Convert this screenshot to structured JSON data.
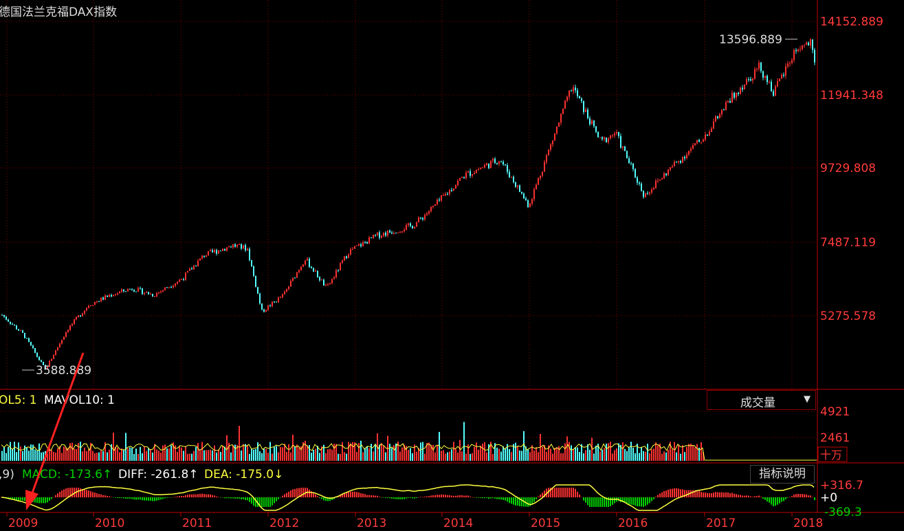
{
  "title": "德国法兰克福DAX指数",
  "price_axis": {
    "ticks": [
      "14152.889",
      "11941.348",
      "9729.808",
      "7487.119",
      "5275.578"
    ]
  },
  "annotations": {
    "high": "13596.889",
    "low": "3588.889"
  },
  "volume_panel": {
    "legend_mavol5": "OL5: 1",
    "legend_mavol10": "MAVOL10: 1",
    "dropdown_label": "成交量",
    "dropdown_arrow": "▼",
    "ticks": [
      "4921",
      "2461"
    ],
    "unit": "十万"
  },
  "macd_panel": {
    "legend_prefix": ",9)",
    "legend_macd": "MACD: -173.6↑",
    "legend_diff": "DIFF: -261.8↑",
    "legend_dea": "DEA: -175.0↓",
    "button": "指标说明",
    "ticks": [
      "+316.7",
      "+0",
      "-369.3"
    ]
  },
  "time_axis": {
    "years": [
      "2009",
      "2010",
      "2011",
      "2012",
      "2013",
      "2014",
      "2015",
      "2016",
      "2017",
      "2018"
    ]
  },
  "colors": {
    "up": "#ff3232",
    "down": "#54ffff",
    "axis": "#c00000",
    "grid": "#8b0000",
    "yellow": "#ffff40",
    "green": "#00d000",
    "arrow": "#ff2020"
  },
  "chart_data": {
    "type": "candlestick",
    "title": "德国法兰克福DAX指数",
    "x_range": [
      "2008-09",
      "2018-02"
    ],
    "ylim": [
      3000,
      14400
    ],
    "high": 13596.889,
    "low": 3588.889,
    "anchors": [
      {
        "x": "2008-09",
        "y": 5300
      },
      {
        "x": "2008-12",
        "y": 4700
      },
      {
        "x": "2009-03",
        "y": 3650
      },
      {
        "x": "2009-06",
        "y": 4850
      },
      {
        "x": "2009-09",
        "y": 5600
      },
      {
        "x": "2009-12",
        "y": 5900
      },
      {
        "x": "2010-03",
        "y": 6100
      },
      {
        "x": "2010-06",
        "y": 5900
      },
      {
        "x": "2010-10",
        "y": 6400
      },
      {
        "x": "2011-01",
        "y": 7100
      },
      {
        "x": "2011-05",
        "y": 7400
      },
      {
        "x": "2011-07",
        "y": 7300
      },
      {
        "x": "2011-09",
        "y": 5400
      },
      {
        "x": "2011-12",
        "y": 5900
      },
      {
        "x": "2012-03",
        "y": 7000
      },
      {
        "x": "2012-06",
        "y": 6100
      },
      {
        "x": "2012-09",
        "y": 7200
      },
      {
        "x": "2013-01",
        "y": 7700
      },
      {
        "x": "2013-06",
        "y": 8000
      },
      {
        "x": "2013-09",
        "y": 8600
      },
      {
        "x": "2014-01",
        "y": 9500
      },
      {
        "x": "2014-06",
        "y": 10000
      },
      {
        "x": "2014-10",
        "y": 8600
      },
      {
        "x": "2014-12",
        "y": 9800
      },
      {
        "x": "2015-04",
        "y": 12200
      },
      {
        "x": "2015-08",
        "y": 10500
      },
      {
        "x": "2015-10",
        "y": 10800
      },
      {
        "x": "2016-02",
        "y": 8900
      },
      {
        "x": "2016-06",
        "y": 9800
      },
      {
        "x": "2016-10",
        "y": 10600
      },
      {
        "x": "2017-03",
        "y": 12100
      },
      {
        "x": "2017-06",
        "y": 12800
      },
      {
        "x": "2017-08",
        "y": 12000
      },
      {
        "x": "2017-11",
        "y": 13300
      },
      {
        "x": "2018-01",
        "y": 13500
      },
      {
        "x": "2018-02",
        "y": 12400
      }
    ]
  }
}
